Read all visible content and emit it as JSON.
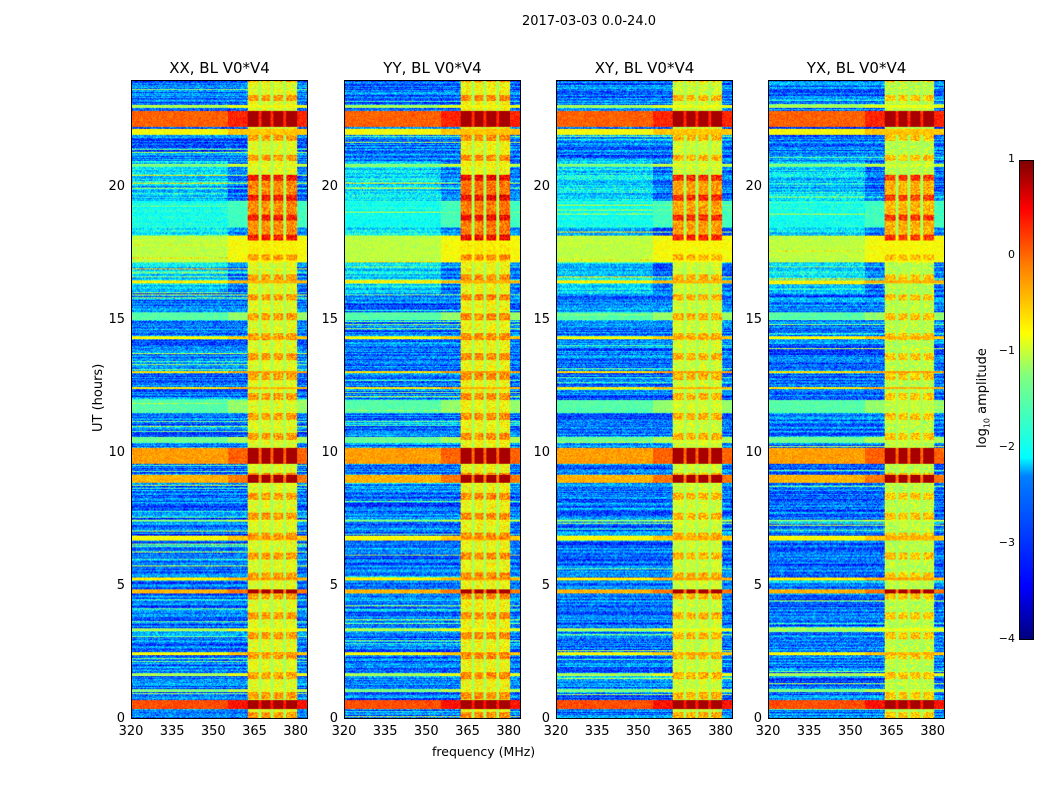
{
  "chart_data": {
    "type": "heatmap",
    "title": "2017-03-03 0.0-24.0",
    "xlabel": "frequency (MHz)",
    "ylabel": "UT (hours)",
    "xlim": [
      320,
      384.5
    ],
    "ylim": [
      0,
      24
    ],
    "xticks": [
      "320",
      "335",
      "350",
      "365",
      "380"
    ],
    "xtick_values": [
      320,
      335,
      350,
      365,
      380
    ],
    "yticks": [
      "0",
      "5",
      "10",
      "15",
      "20"
    ],
    "ytick_values": [
      0,
      5,
      10,
      15,
      20
    ],
    "colorbar": {
      "label_main": "log",
      "label_sub": "10",
      "label_rest": " amplitude",
      "range": [
        -4,
        1
      ],
      "ticks": [
        "1",
        "0",
        "−1",
        "−2",
        "−3",
        "−4"
      ],
      "tick_values": [
        1,
        0,
        -1,
        -2,
        -3,
        -4
      ],
      "colormap": "jet"
    },
    "panels": [
      {
        "title": "XX, BL V0*V4",
        "rfi_level": 0.0
      },
      {
        "title": "YY, BL V0*V4",
        "rfi_level": 0.1
      },
      {
        "title": "XY, BL V0*V4",
        "rfi_level": -0.1
      },
      {
        "title": "YX, BL V0*V4",
        "rfi_level": -0.2
      }
    ],
    "background_level": -2.8,
    "rfi_band_mhz": [
      362.5,
      380.5
    ],
    "rfi_gaps_mhz": [
      367,
      371.5,
      376
    ],
    "time_bands": [
      {
        "start": 0.35,
        "end": 0.7,
        "level": 0.3
      },
      {
        "start": 1.0,
        "end": 1.1,
        "level": -1.2
      },
      {
        "start": 1.6,
        "end": 1.7,
        "level": -1.0
      },
      {
        "start": 2.4,
        "end": 2.5,
        "level": -0.6
      },
      {
        "start": 3.3,
        "end": 3.4,
        "level": -1.0
      },
      {
        "start": 4.7,
        "end": 4.85,
        "level": -0.2
      },
      {
        "start": 5.2,
        "end": 5.3,
        "level": -0.5
      },
      {
        "start": 6.7,
        "end": 6.9,
        "level": -0.6
      },
      {
        "start": 7.4,
        "end": 7.5,
        "level": -1.2
      },
      {
        "start": 8.9,
        "end": 9.2,
        "level": -0.2
      },
      {
        "start": 9.6,
        "end": 10.2,
        "level": -0.1
      },
      {
        "start": 10.4,
        "end": 10.6,
        "level": -1.3
      },
      {
        "start": 11.5,
        "end": 12.0,
        "level": -1.4
      },
      {
        "start": 12.4,
        "end": 12.5,
        "level": -0.5
      },
      {
        "start": 13.0,
        "end": 13.1,
        "level": -0.4
      },
      {
        "start": 14.3,
        "end": 14.4,
        "level": -0.6
      },
      {
        "start": 15.0,
        "end": 15.3,
        "level": -1.4
      },
      {
        "start": 16.4,
        "end": 16.5,
        "level": -0.5
      },
      {
        "start": 17.2,
        "end": 18.2,
        "level": -0.9
      },
      {
        "start": 18.5,
        "end": 19.5,
        "level": -1.8
      },
      {
        "start": 20.8,
        "end": 20.9,
        "level": -1.2
      },
      {
        "start": 22.0,
        "end": 22.2,
        "level": -0.6
      },
      {
        "start": 22.3,
        "end": 22.9,
        "level": 0.2
      },
      {
        "start": 23.0,
        "end": 23.1,
        "level": -1.0
      }
    ]
  }
}
